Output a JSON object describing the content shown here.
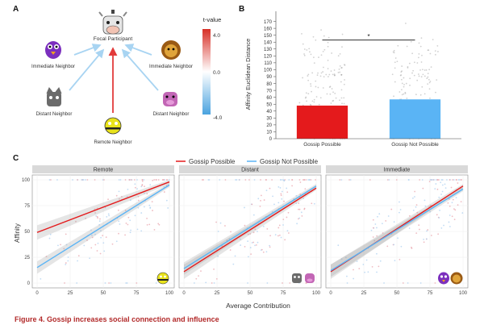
{
  "figure": {
    "panels": {
      "a": "A",
      "b": "B",
      "c": "C"
    },
    "caption": "Figure 4.  Gossip increases social connection and influence"
  },
  "panel_a": {
    "nodes": [
      {
        "id": "focal",
        "label": "Focal Participant",
        "icon": "cow-icon",
        "color": "#d9d9d9"
      },
      {
        "id": "imm-left",
        "label": "Immediate Neighbor",
        "icon": "purple-bird-icon",
        "color": "#7b2fbe"
      },
      {
        "id": "imm-right",
        "label": "Immediate Neighbor",
        "icon": "lion-icon",
        "color": "#b8741a"
      },
      {
        "id": "dist-left",
        "label": "Distant Neighbor",
        "icon": "gray-cat-icon",
        "color": "#6b6b6b"
      },
      {
        "id": "dist-right",
        "label": "Distant Neighbor",
        "icon": "pink-pig-icon",
        "color": "#c266b5"
      },
      {
        "id": "remote",
        "label": "Remote Neighbor",
        "icon": "yellow-bee-icon",
        "color": "#e8e21b"
      }
    ],
    "colorbar": {
      "title": "t-value",
      "max": "4.0",
      "mid": "0.0",
      "min": "-4.0",
      "high_color": "#d73027",
      "low_color": "#4aa3df"
    }
  },
  "chart_data": [
    {
      "type": "bar",
      "ylabel": "Affinity Euclidean Distance",
      "ylim": [
        0,
        180
      ],
      "yticks": [
        "0",
        "10",
        "20",
        "30",
        "40",
        "50",
        "60",
        "70",
        "80",
        "90",
        "100",
        "110",
        "120",
        "130",
        "140",
        "150",
        "160",
        "170"
      ],
      "yticks_values": [
        0,
        10,
        20,
        30,
        40,
        50,
        60,
        70,
        80,
        90,
        100,
        110,
        120,
        130,
        140,
        150,
        160,
        170
      ],
      "categories": [
        "Gossip Possible",
        "Gossip Not Possible"
      ],
      "values": [
        48,
        57
      ],
      "colors": [
        "#e41a1c",
        "#5ab4f5"
      ],
      "significance": "*"
    },
    {
      "type": "line",
      "legend": [
        "Gossip Possible",
        "Gossip Not Possible"
      ],
      "legend_colors": [
        "#e41a1c",
        "#5ab4f5"
      ],
      "xlabel": "Average Contribution",
      "ylabel": "Affinity",
      "xlim": [
        0,
        100
      ],
      "ylim": [
        0,
        100
      ],
      "xticks": [
        "0",
        "25",
        "50",
        "75",
        "100"
      ],
      "yticks": [
        "0",
        "25",
        "50",
        "75",
        "100"
      ],
      "facets": [
        {
          "title": "Remote",
          "icons": [
            "yellow-bee-icon"
          ],
          "series": [
            {
              "values": [
                [
                  0,
                  49
                ],
                [
                  100,
                  98
                ]
              ]
            },
            {
              "values": [
                [
                  0,
                  15
                ],
                [
                  100,
                  95
                ]
              ]
            }
          ]
        },
        {
          "title": "Distant",
          "icons": [
            "gray-cat-icon",
            "pink-pig-icon"
          ],
          "series": [
            {
              "values": [
                [
                  0,
                  11
                ],
                [
                  100,
                  92
                ]
              ]
            },
            {
              "values": [
                [
                  0,
                  14
                ],
                [
                  100,
                  94
                ]
              ]
            }
          ]
        },
        {
          "title": "Immediate",
          "icons": [
            "purple-bird-icon",
            "lion-icon"
          ],
          "series": [
            {
              "values": [
                [
                  0,
                  11
                ],
                [
                  100,
                  94
                ]
              ]
            },
            {
              "values": [
                [
                  0,
                  12
                ],
                [
                  100,
                  91
                ]
              ]
            }
          ]
        }
      ]
    }
  ]
}
